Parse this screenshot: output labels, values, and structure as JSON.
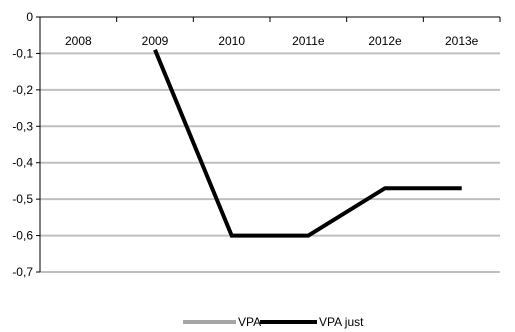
{
  "chart_data": {
    "type": "line",
    "categories": [
      "2008",
      "2009",
      "2010",
      "2011e",
      "2012e",
      "2013e"
    ],
    "series": [
      {
        "name": "VPA",
        "color": "#a6a6a6",
        "values": [
          null,
          null,
          null,
          null,
          null,
          null
        ]
      },
      {
        "name": "VPA just",
        "color": "#000000",
        "values": [
          null,
          -0.09,
          -0.6,
          -0.6,
          -0.47,
          -0.47
        ]
      }
    ],
    "ylim": [
      -0.7,
      0
    ],
    "yticks": [
      "0",
      "-0,1",
      "-0,2",
      "-0,3",
      "-0,4",
      "-0,5",
      "-0,6",
      "-0,7"
    ],
    "grid": true,
    "legend": "bottom-center"
  }
}
